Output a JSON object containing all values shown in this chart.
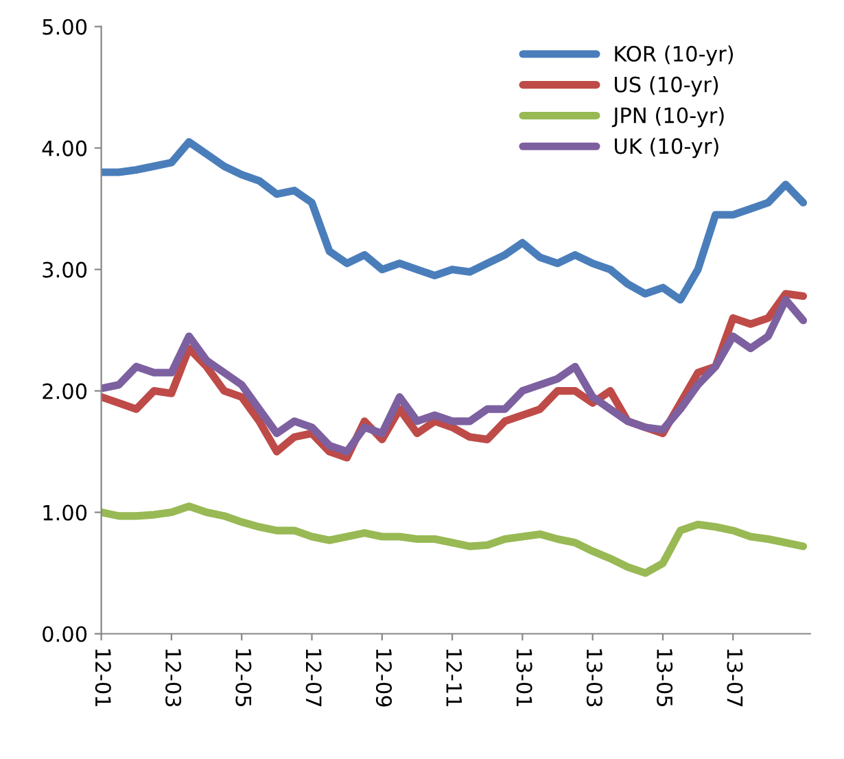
{
  "chart_data": {
    "type": "line",
    "categories": [
      "12-01",
      null,
      null,
      null,
      "12-03",
      null,
      null,
      null,
      "12-05",
      null,
      null,
      null,
      "12-07",
      null,
      null,
      null,
      "12-09",
      null,
      null,
      null,
      "12-11",
      null,
      null,
      null,
      "13-01",
      null,
      null,
      null,
      "13-03",
      null,
      null,
      null,
      "13-05",
      null,
      null,
      null,
      "13-07",
      null,
      null,
      null,
      null
    ],
    "series": [
      {
        "name": "KOR (10-yr)",
        "color": "#4a7ebb",
        "values": [
          3.8,
          3.8,
          3.82,
          3.85,
          3.88,
          4.05,
          3.95,
          3.85,
          3.78,
          3.73,
          3.62,
          3.65,
          3.55,
          3.15,
          3.05,
          3.12,
          3.0,
          3.05,
          3.0,
          2.95,
          3.0,
          2.98,
          3.05,
          3.12,
          3.22,
          3.1,
          3.05,
          3.12,
          3.05,
          3.0,
          2.88,
          2.8,
          2.85,
          2.75,
          3.0,
          3.45,
          3.45,
          3.5,
          3.55,
          3.7,
          3.55
        ]
      },
      {
        "name": "US (10-yr)",
        "color": "#be4b48",
        "values": [
          1.95,
          1.9,
          1.85,
          2.0,
          1.98,
          2.35,
          2.2,
          2.0,
          1.95,
          1.75,
          1.5,
          1.62,
          1.65,
          1.5,
          1.45,
          1.75,
          1.6,
          1.85,
          1.65,
          1.75,
          1.7,
          1.62,
          1.6,
          1.75,
          1.8,
          1.85,
          2.0,
          2.0,
          1.9,
          2.0,
          1.75,
          1.7,
          1.65,
          1.9,
          2.15,
          2.2,
          2.6,
          2.55,
          2.6,
          2.8,
          2.78
        ]
      },
      {
        "name": "JPN (10-yr)",
        "color": "#98b954",
        "values": [
          1.0,
          0.97,
          0.97,
          0.98,
          1.0,
          1.05,
          1.0,
          0.97,
          0.92,
          0.88,
          0.85,
          0.85,
          0.8,
          0.77,
          0.8,
          0.83,
          0.8,
          0.8,
          0.78,
          0.78,
          0.75,
          0.72,
          0.73,
          0.78,
          0.8,
          0.82,
          0.78,
          0.75,
          0.68,
          0.62,
          0.55,
          0.5,
          0.58,
          0.85,
          0.9,
          0.88,
          0.85,
          0.8,
          0.78,
          0.75,
          0.72
        ]
      },
      {
        "name": "UK (10-yr)",
        "color": "#7d60a0",
        "values": [
          2.02,
          2.05,
          2.2,
          2.15,
          2.15,
          2.45,
          2.25,
          2.15,
          2.05,
          1.85,
          1.65,
          1.75,
          1.7,
          1.55,
          1.5,
          1.7,
          1.65,
          1.95,
          1.75,
          1.8,
          1.75,
          1.75,
          1.85,
          1.85,
          2.0,
          2.05,
          2.1,
          2.2,
          1.95,
          1.85,
          1.75,
          1.7,
          1.68,
          1.85,
          2.05,
          2.2,
          2.45,
          2.35,
          2.45,
          2.75,
          2.58
        ]
      }
    ],
    "ylim": [
      0,
      5
    ],
    "yticks": [
      {
        "value": 0,
        "label": "0.00"
      },
      {
        "value": 1,
        "label": "1.00"
      },
      {
        "value": 2,
        "label": "2.00"
      },
      {
        "value": 3,
        "label": "3.00"
      },
      {
        "value": 4,
        "label": "4.00"
      },
      {
        "value": 5,
        "label": "5.00"
      }
    ],
    "grid": false,
    "legend": "top right",
    "marker": "none",
    "line_style": "solid"
  }
}
